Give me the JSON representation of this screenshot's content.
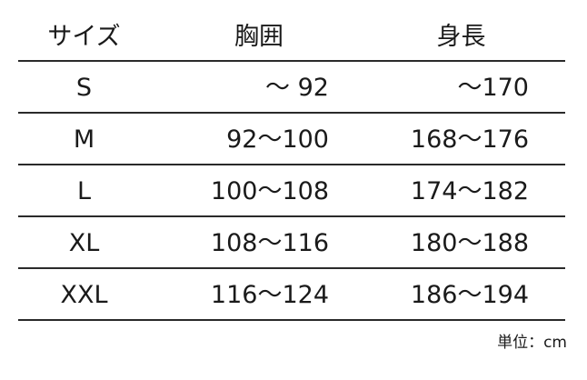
{
  "table": {
    "headers": [
      "サイズ",
      "胸囲",
      "身長"
    ],
    "rows": [
      [
        "S",
        "～ 92",
        "～170"
      ],
      [
        "M",
        "92～100",
        "168～176"
      ],
      [
        "L",
        "100～108",
        "174～182"
      ],
      [
        "XL",
        "108～116",
        "180～188"
      ],
      [
        "XXL",
        "116～124",
        "186～194"
      ]
    ]
  },
  "unit_note": "単位：cm"
}
